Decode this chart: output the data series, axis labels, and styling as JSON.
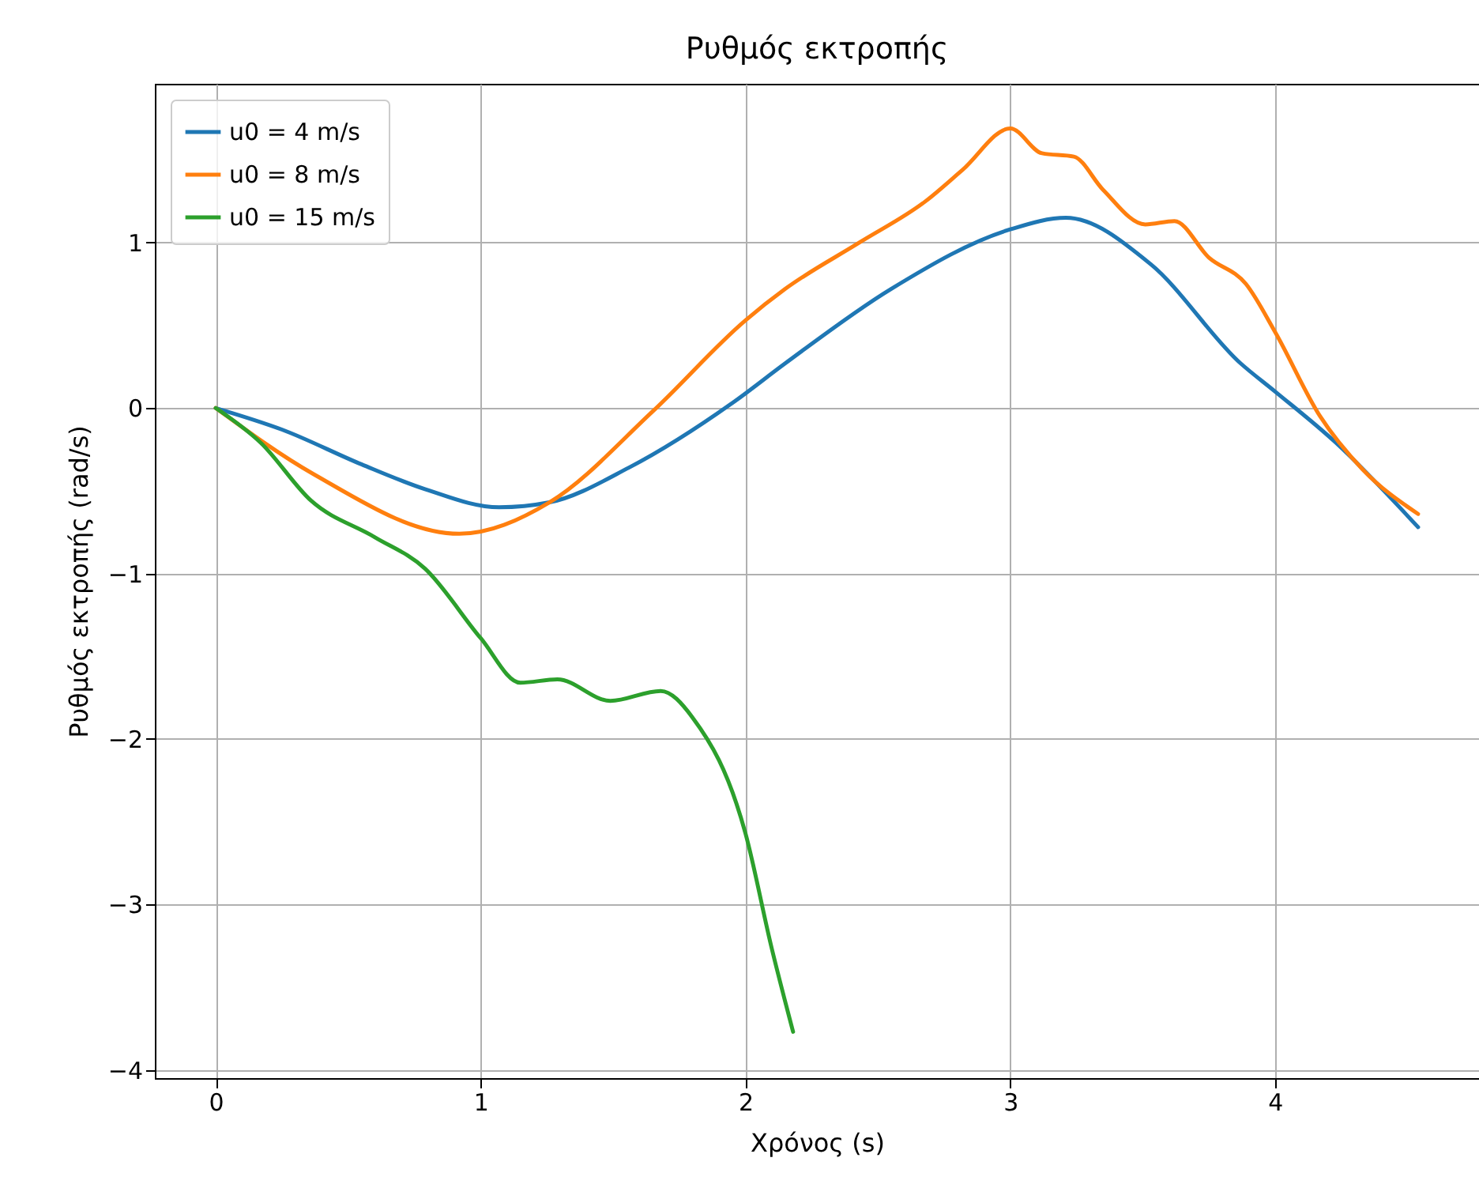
{
  "chart_data": {
    "type": "line",
    "title": "Ρυθμός εκτροπής",
    "xlabel": "Χρόνος (s)",
    "ylabel": "Ρυθμός εκτροπής (rad/s)",
    "xlim": [
      -0.23,
      4.77
    ],
    "ylim": [
      -4.05,
      1.96
    ],
    "xticks": [
      0,
      1,
      2,
      3,
      4
    ],
    "yticks": [
      -4,
      -3,
      -2,
      -1,
      0,
      1
    ],
    "grid": true,
    "legend": "top left",
    "line_style": "solid",
    "marker": "none",
    "series": [
      {
        "name": "u0 = 4 m/s",
        "color": "#1f77b4",
        "x": [
          0,
          0.25,
          0.55,
          0.79,
          1.07,
          1.26,
          1.56,
          1.95,
          2.15,
          2.55,
          3.0,
          3.21,
          3.53,
          3.87,
          4.0,
          4.23,
          4.54
        ],
        "values": [
          0,
          -0.13,
          -0.34,
          -0.49,
          -0.6,
          -0.57,
          -0.36,
          0.03,
          0.27,
          0.72,
          1.08,
          1.15,
          0.87,
          0.27,
          0.1,
          -0.21,
          -0.72
        ]
      },
      {
        "name": "u0 = 8 m/s",
        "color": "#ff7f0e",
        "x": [
          0,
          0.37,
          0.92,
          1.26,
          1.65,
          2.0,
          2.15,
          2.43,
          2.68,
          2.82,
          3.0,
          3.12,
          3.24,
          3.35,
          3.51,
          3.62,
          3.75,
          3.89,
          4.0,
          4.17,
          4.33,
          4.54
        ],
        "values": [
          0,
          -0.4,
          -0.76,
          -0.57,
          -0.02,
          0.53,
          0.72,
          1.0,
          1.25,
          1.44,
          1.69,
          1.54,
          1.52,
          1.32,
          1.11,
          1.13,
          0.91,
          0.75,
          0.46,
          -0.05,
          -0.37,
          -0.64
        ]
      },
      {
        "name": "u0 = 15 m/s",
        "color": "#2ca02c",
        "x": [
          0,
          0.17,
          0.36,
          0.6,
          0.79,
          1.0,
          1.15,
          1.29,
          1.49,
          1.68,
          1.8,
          2.0,
          2.1,
          2.18
        ],
        "values": [
          0,
          -0.21,
          -0.56,
          -0.78,
          -0.97,
          -1.39,
          -1.66,
          -1.64,
          -1.77,
          -1.71,
          -1.87,
          -2.57,
          -3.27,
          -3.77
        ]
      }
    ]
  }
}
